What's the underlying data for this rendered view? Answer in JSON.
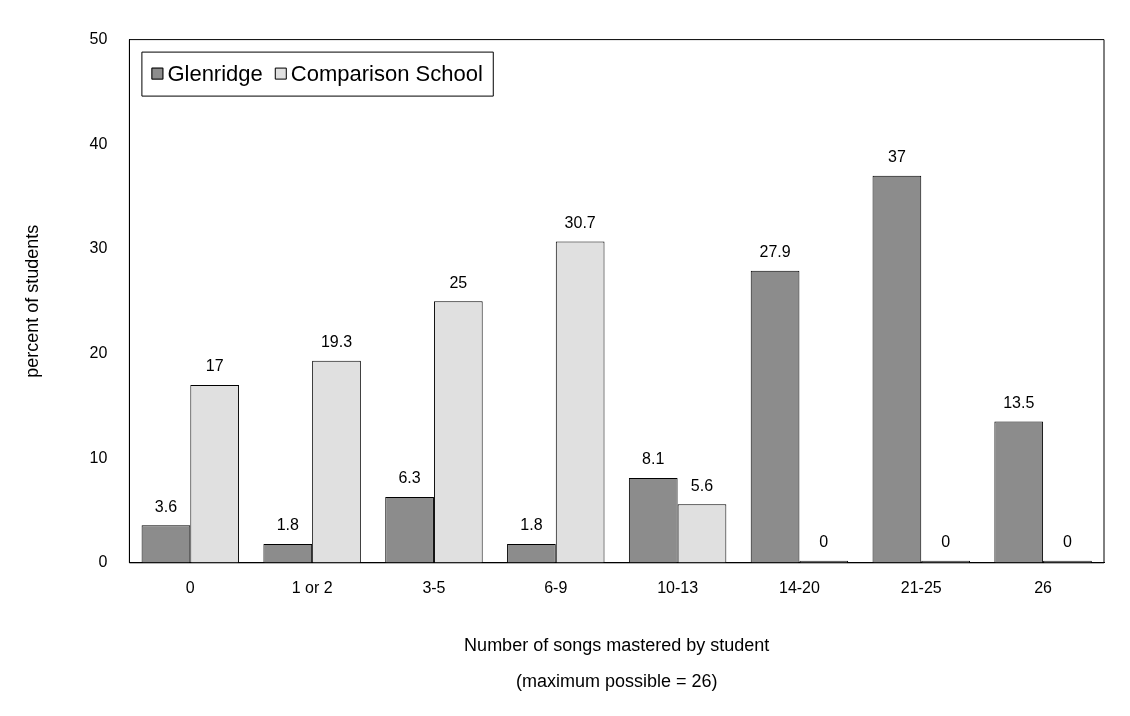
{
  "chart_data": {
    "type": "bar",
    "xlabel": "Number of songs mastered by student",
    "ylabel": "percent of students",
    "annotations": [
      "(maximum possible = 26)"
    ],
    "categories": [
      "0",
      "1 or 2",
      "3-5",
      "6-9",
      "10-13",
      "14-20",
      "21-25",
      "26"
    ],
    "series": [
      {
        "name": "Glenridge",
        "color": "#8c8c8c",
        "values": [
          3.6,
          1.8,
          6.3,
          1.8,
          8.1,
          27.9,
          37,
          13.5
        ]
      },
      {
        "name": "Comparison School",
        "color": "#e0e0e0",
        "values": [
          17,
          19.3,
          25,
          30.7,
          5.6,
          0,
          0,
          0
        ]
      }
    ],
    "ylim": [
      0,
      50
    ],
    "yticks": [
      0,
      10,
      20,
      30,
      40,
      50
    ],
    "grid": false,
    "legend": "top left",
    "data_labels": true
  }
}
